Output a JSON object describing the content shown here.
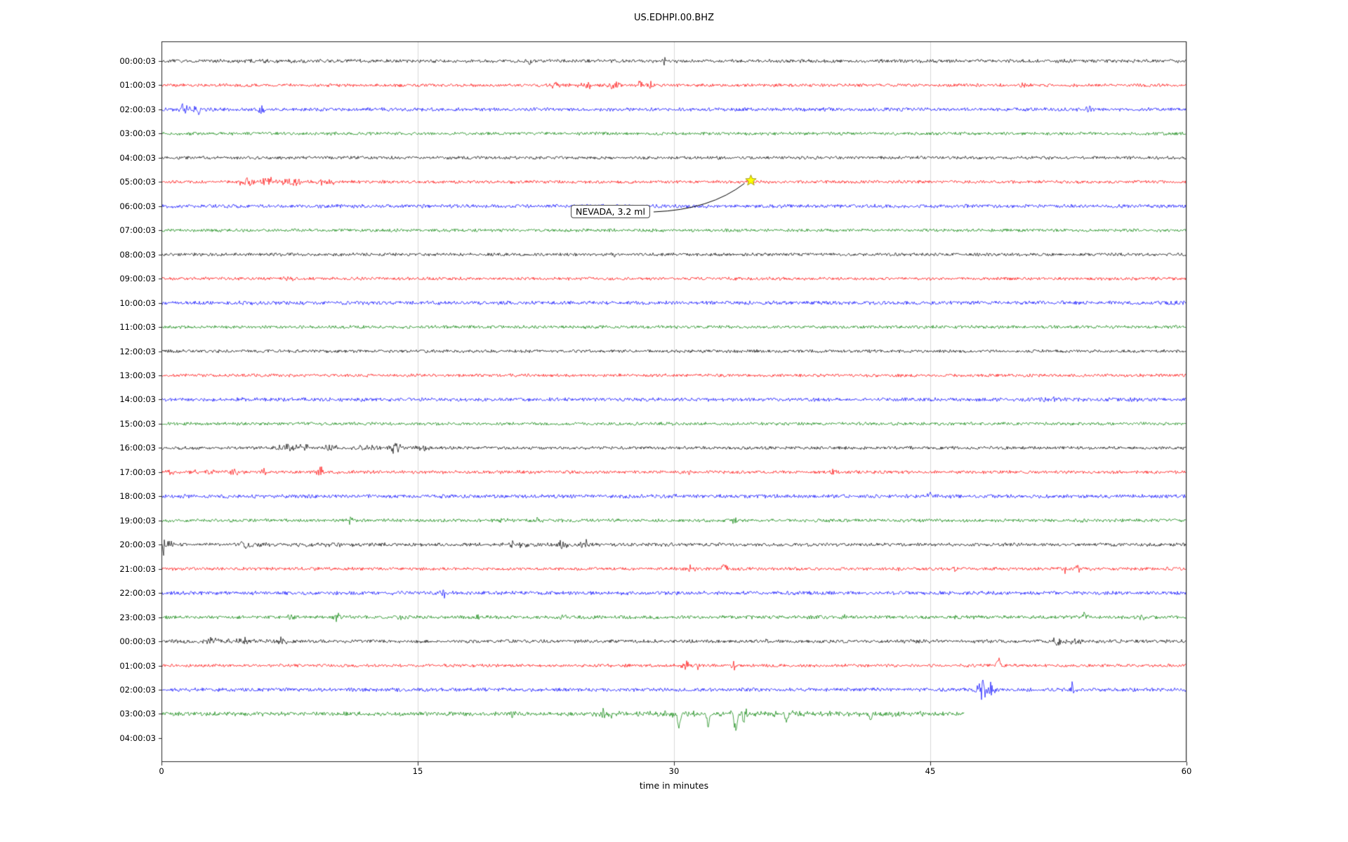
{
  "chart_data": {
    "type": "line",
    "subtype": "seismogram-helicorder-dayplot",
    "title": "US.EDHPI.00.BHZ",
    "xlabel": "time in minutes",
    "x_range": [
      0,
      60
    ],
    "x_ticks": [
      0,
      15,
      30,
      45,
      60
    ],
    "grid": "vertical-only",
    "trace_color_cycle": [
      "black",
      "red",
      "blue",
      "green"
    ],
    "palette": {
      "black": "#000000",
      "red": "#ff0000",
      "blue": "#0000ff",
      "green": "#008000",
      "star_fill": "#ffff00",
      "star_edge": "#8f8400",
      "grid": "#d9d9d9",
      "axis": "#262626"
    },
    "annotation": {
      "label": "NEVADA, 3.2 ml",
      "row": "05:00:03",
      "minute": 34.5,
      "marker": "yellow-star"
    },
    "rows": [
      {
        "label": "00:00:03",
        "color": "black",
        "has_data": true,
        "end_minute": 60,
        "base_amp": 2.2,
        "events": [
          {
            "m": 6,
            "a": 1.5,
            "w": 1.5
          },
          {
            "m": 21.5,
            "a": 5,
            "w": 0.15
          },
          {
            "m": 29.5,
            "a": 7,
            "w": 0.12
          }
        ]
      },
      {
        "label": "01:00:03",
        "color": "red",
        "has_data": true,
        "end_minute": 60,
        "base_amp": 2.0,
        "events": [
          {
            "m": 23,
            "a": 2.5,
            "w": 1.2
          },
          {
            "m": 25,
            "a": 4,
            "w": 0.6
          },
          {
            "m": 26.5,
            "a": 6,
            "w": 0.3
          },
          {
            "m": 28,
            "a": 7,
            "w": 0.18
          },
          {
            "m": 28.6,
            "a": 5,
            "w": 0.15
          },
          {
            "m": 50.5,
            "a": 3.5,
            "w": 0.25
          }
        ]
      },
      {
        "label": "02:00:03",
        "color": "blue",
        "has_data": true,
        "end_minute": 60,
        "base_amp": 2.3,
        "events": [
          {
            "m": 1.2,
            "a": 9,
            "w": 0.35
          },
          {
            "m": 2.1,
            "a": 7,
            "w": 0.25
          },
          {
            "m": 5.8,
            "a": 8,
            "w": 0.25
          },
          {
            "m": 54.3,
            "a": 6,
            "w": 0.25
          }
        ]
      },
      {
        "label": "03:00:03",
        "color": "green",
        "has_data": true,
        "end_minute": 60,
        "base_amp": 2.0,
        "events": [
          {
            "m": 1.5,
            "a": 3.5,
            "w": 0.2
          }
        ]
      },
      {
        "label": "04:00:03",
        "color": "black",
        "has_data": true,
        "end_minute": 60,
        "base_amp": 2.0,
        "events": []
      },
      {
        "label": "05:00:03",
        "color": "red",
        "has_data": true,
        "end_minute": 60,
        "base_amp": 2.0,
        "events": [
          {
            "m": 5,
            "a": 6,
            "w": 0.5
          },
          {
            "m": 6.2,
            "a": 7,
            "w": 0.5
          },
          {
            "m": 7.6,
            "a": 5,
            "w": 0.7
          },
          {
            "m": 9.5,
            "a": 3,
            "w": 1
          },
          {
            "m": 34.5,
            "a": 1.5,
            "w": 0.5
          }
        ]
      },
      {
        "label": "06:00:03",
        "color": "blue",
        "has_data": true,
        "end_minute": 60,
        "base_amp": 2.3,
        "events": []
      },
      {
        "label": "07:00:03",
        "color": "green",
        "has_data": true,
        "end_minute": 60,
        "base_amp": 2.0,
        "events": []
      },
      {
        "label": "08:00:03",
        "color": "black",
        "has_data": true,
        "end_minute": 60,
        "base_amp": 2.0,
        "events": [
          {
            "m": 26.5,
            "a": 3,
            "w": 0.15
          }
        ]
      },
      {
        "label": "09:00:03",
        "color": "red",
        "has_data": true,
        "end_minute": 60,
        "base_amp": 2.0,
        "events": [
          {
            "m": 7.5,
            "a": 2.5,
            "w": 0.4
          }
        ]
      },
      {
        "label": "10:00:03",
        "color": "blue",
        "has_data": true,
        "end_minute": 60,
        "base_amp": 2.4,
        "events": []
      },
      {
        "label": "11:00:03",
        "color": "green",
        "has_data": true,
        "end_minute": 60,
        "base_amp": 2.0,
        "events": []
      },
      {
        "label": "12:00:03",
        "color": "black",
        "has_data": true,
        "end_minute": 60,
        "base_amp": 2.0,
        "events": [
          {
            "m": 28,
            "a": 3,
            "w": 0.15
          }
        ]
      },
      {
        "label": "13:00:03",
        "color": "red",
        "has_data": true,
        "end_minute": 60,
        "base_amp": 2.0,
        "events": []
      },
      {
        "label": "14:00:03",
        "color": "blue",
        "has_data": true,
        "end_minute": 60,
        "base_amp": 2.4,
        "events": [
          {
            "m": 51.5,
            "a": 2,
            "w": 1.5
          }
        ]
      },
      {
        "label": "15:00:03",
        "color": "green",
        "has_data": true,
        "end_minute": 60,
        "base_amp": 2.0,
        "events": []
      },
      {
        "label": "16:00:03",
        "color": "black",
        "has_data": true,
        "end_minute": 60,
        "base_amp": 2.0,
        "events": [
          {
            "m": 7.3,
            "a": 7,
            "w": 0.45
          },
          {
            "m": 8.3,
            "a": 6,
            "w": 0.35
          },
          {
            "m": 10,
            "a": 5,
            "w": 0.5
          },
          {
            "m": 12,
            "a": 3,
            "w": 1
          },
          {
            "m": 13.7,
            "a": 7,
            "w": 0.35
          },
          {
            "m": 15.3,
            "a": 5,
            "w": 0.3
          }
        ]
      },
      {
        "label": "17:00:03",
        "color": "red",
        "has_data": true,
        "end_minute": 60,
        "base_amp": 2.1,
        "events": [
          {
            "m": 0.5,
            "a": 6,
            "w": 0.2
          },
          {
            "m": 3,
            "a": 2,
            "w": 1.5
          },
          {
            "m": 4.3,
            "a": 4,
            "w": 0.3
          },
          {
            "m": 6,
            "a": 4,
            "w": 0.2
          },
          {
            "m": 9.3,
            "a": 7,
            "w": 0.22
          },
          {
            "m": 30.8,
            "a": 4,
            "w": 0.2
          },
          {
            "m": 39.3,
            "a": 4,
            "w": 0.22
          }
        ]
      },
      {
        "label": "18:00:03",
        "color": "blue",
        "has_data": true,
        "end_minute": 60,
        "base_amp": 2.4,
        "events": [
          {
            "m": 30,
            "a": 4,
            "w": 0.2
          },
          {
            "m": 45,
            "a": 7,
            "w": 0.12,
            "d": 1
          }
        ]
      },
      {
        "label": "19:00:03",
        "color": "green",
        "has_data": true,
        "end_minute": 60,
        "base_amp": 2.1,
        "events": [
          {
            "m": 11,
            "a": 6,
            "w": 0.2
          },
          {
            "m": 20,
            "a": 4,
            "w": 0.25
          },
          {
            "m": 22,
            "a": 4,
            "w": 0.25
          },
          {
            "m": 33.5,
            "a": 4,
            "w": 0.22
          },
          {
            "m": 54,
            "a": 3,
            "w": 0.25
          }
        ]
      },
      {
        "label": "20:00:03",
        "color": "black",
        "has_data": true,
        "end_minute": 60,
        "base_amp": 2.2,
        "events": [
          {
            "m": 0.15,
            "a": 18,
            "w": 0.12
          },
          {
            "m": 0.5,
            "a": 8,
            "w": 0.25
          },
          {
            "m": 4.8,
            "a": 5,
            "w": 0.5
          },
          {
            "m": 10,
            "a": 1.5,
            "w": 6
          },
          {
            "m": 20.8,
            "a": 4,
            "w": 0.8
          },
          {
            "m": 23.5,
            "a": 5,
            "w": 0.5
          },
          {
            "m": 24.8,
            "a": 8,
            "w": 0.25
          }
        ]
      },
      {
        "label": "21:00:03",
        "color": "red",
        "has_data": true,
        "end_minute": 60,
        "base_amp": 2.0,
        "events": [
          {
            "m": 31,
            "a": 5,
            "w": 0.22
          },
          {
            "m": 33,
            "a": 6,
            "w": 0.22
          },
          {
            "m": 43,
            "a": 4,
            "w": 0.25
          },
          {
            "m": 46.5,
            "a": 4,
            "w": 0.25
          },
          {
            "m": 52.8,
            "a": 6,
            "w": 0.3
          },
          {
            "m": 53.6,
            "a": 5,
            "w": 0.25
          }
        ]
      },
      {
        "label": "22:00:03",
        "color": "blue",
        "has_data": true,
        "end_minute": 60,
        "base_amp": 2.4,
        "events": [
          {
            "m": 16.5,
            "a": 6,
            "w": 0.2
          }
        ]
      },
      {
        "label": "23:00:03",
        "color": "green",
        "has_data": true,
        "end_minute": 60,
        "base_amp": 2.2,
        "events": [
          {
            "m": 7.5,
            "a": 4,
            "w": 0.25
          },
          {
            "m": 10.3,
            "a": 6,
            "w": 0.25
          },
          {
            "m": 14,
            "a": 4,
            "w": 0.22
          },
          {
            "m": 18.5,
            "a": 4,
            "w": 0.25
          },
          {
            "m": 23.5,
            "a": 4,
            "w": 0.25
          },
          {
            "m": 40,
            "a": 3,
            "w": 0.25
          },
          {
            "m": 54,
            "a": 6,
            "w": 0.25
          },
          {
            "m": 57.5,
            "a": 4,
            "w": 0.3
          }
        ]
      },
      {
        "label": "00:00:03",
        "color": "black",
        "has_data": true,
        "end_minute": 60,
        "base_amp": 2.2,
        "events": [
          {
            "m": 3,
            "a": 5,
            "w": 0.35
          },
          {
            "m": 4.5,
            "a": 2,
            "w": 2.5
          },
          {
            "m": 5,
            "a": 4,
            "w": 0.6
          },
          {
            "m": 7,
            "a": 5,
            "w": 0.4
          },
          {
            "m": 35.5,
            "a": 4,
            "w": 0.18
          },
          {
            "m": 52.5,
            "a": 7,
            "w": 0.35
          },
          {
            "m": 53.5,
            "a": 6,
            "w": 0.3
          }
        ]
      },
      {
        "label": "01:00:03",
        "color": "red",
        "has_data": true,
        "end_minute": 60,
        "base_amp": 2.0,
        "events": [
          {
            "m": 30.7,
            "a": 9,
            "w": 0.22
          },
          {
            "m": 31.3,
            "a": 8,
            "w": 0.18
          },
          {
            "m": 33.5,
            "a": 6,
            "w": 0.22
          },
          {
            "m": 49,
            "a": 10,
            "w": 0.12,
            "d": 1
          }
        ]
      },
      {
        "label": "02:00:03",
        "color": "blue",
        "has_data": true,
        "end_minute": 60,
        "base_amp": 2.4,
        "events": [
          {
            "m": 48,
            "a": 20,
            "w": 0.25
          },
          {
            "m": 48.6,
            "a": 14,
            "w": 0.18
          },
          {
            "m": 53.3,
            "a": 12,
            "w": 0.12
          }
        ]
      },
      {
        "label": "03:00:03",
        "color": "green",
        "has_data": true,
        "end_minute": 47,
        "base_amp": 2.6,
        "events": [
          {
            "m": 20.5,
            "a": 4,
            "w": 0.3
          },
          {
            "m": 25.8,
            "a": 8,
            "w": 0.28
          },
          {
            "m": 26.3,
            "a": 6,
            "w": 0.2
          },
          {
            "m": 28.5,
            "a": 5,
            "w": 0.2
          },
          {
            "m": 33,
            "a": 3,
            "w": 7
          },
          {
            "m": 30.3,
            "a": 26,
            "w": 0.09,
            "d": -1
          },
          {
            "m": 32,
            "a": 22,
            "w": 0.09,
            "d": -1
          },
          {
            "m": 33.6,
            "a": 28,
            "w": 0.1,
            "d": -1
          },
          {
            "m": 34.1,
            "a": 12,
            "w": 0.15
          },
          {
            "m": 36.6,
            "a": 14,
            "w": 0.1,
            "d": -1
          },
          {
            "m": 41.5,
            "a": 10,
            "w": 0.1,
            "d": -1
          },
          {
            "m": 43,
            "a": 5,
            "w": 0.25
          },
          {
            "m": 44.5,
            "a": 4,
            "w": 0.2
          }
        ]
      },
      {
        "label": "04:00:03",
        "color": "black",
        "has_data": false,
        "end_minute": 0,
        "base_amp": 0,
        "events": []
      }
    ]
  }
}
